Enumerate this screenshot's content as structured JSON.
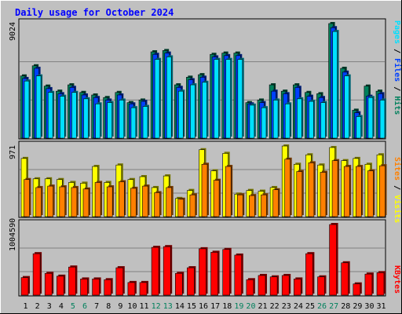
{
  "title": "Daily usage for October 2024",
  "colors": {
    "background": "#c0c0c0",
    "plot": "#c0c0c0",
    "title": "#0000ff",
    "hits": "#00805c",
    "files": "#0040ff",
    "pages": "#00e0ff",
    "visits": "#ffff00",
    "sites": "#ff8000",
    "kbytes": "#ff0000",
    "weekend_label": "#00805c",
    "weekday_label": "#000000",
    "grid": "#808080"
  },
  "panels": {
    "top": {
      "ymax_label": "9024",
      "legend": [
        {
          "text": "Pages",
          "color_key": "pages"
        },
        {
          "text": " / ",
          "color_key": "weekday_label"
        },
        {
          "text": "Files",
          "color_key": "files"
        },
        {
          "text": " / ",
          "color_key": "weekday_label"
        },
        {
          "text": "Hits",
          "color_key": "hits"
        }
      ]
    },
    "middle": {
      "ymax_label": "971",
      "legend": [
        {
          "text": "Sites",
          "color_key": "sites"
        },
        {
          "text": " / ",
          "color_key": "weekday_label"
        },
        {
          "text": "Visits",
          "color_key": "visits"
        }
      ]
    },
    "bottom": {
      "ymax_label": "1004590",
      "legend": [
        {
          "text": "KBytes",
          "color_key": "kbytes"
        }
      ]
    }
  },
  "chart_data": {
    "type": "bar",
    "title": "Daily usage for October 2024",
    "days": [
      "1",
      "2",
      "3",
      "4",
      "5",
      "6",
      "7",
      "8",
      "9",
      "10",
      "11",
      "12",
      "13",
      "14",
      "15",
      "16",
      "17",
      "18",
      "19",
      "20",
      "21",
      "22",
      "23",
      "24",
      "25",
      "26",
      "27",
      "28",
      "29",
      "30",
      "31"
    ],
    "weekend_days": [
      "5",
      "6",
      "12",
      "13",
      "19",
      "20",
      "26",
      "27"
    ],
    "hits": [
      4900,
      5700,
      4100,
      3700,
      4200,
      3600,
      3400,
      3200,
      3600,
      2800,
      3000,
      6800,
      6900,
      4200,
      4800,
      5000,
      6600,
      6700,
      6700,
      2800,
      3000,
      4200,
      3700,
      4200,
      3600,
      3500,
      9024,
      5500,
      2200,
      4100,
      3700
    ],
    "files": [
      4700,
      5500,
      3900,
      3500,
      4000,
      3400,
      3200,
      3000,
      3400,
      2700,
      2900,
      6600,
      6700,
      4000,
      4600,
      4800,
      6400,
      6500,
      6500,
      2700,
      2800,
      3700,
      3500,
      4000,
      3300,
      3200,
      8700,
      5200,
      2000,
      3300,
      3500
    ],
    "pages": [
      4500,
      4900,
      3600,
      3300,
      3600,
      3100,
      2700,
      2800,
      3000,
      2400,
      2500,
      6200,
      6400,
      3700,
      4200,
      4400,
      6200,
      6200,
      6200,
      2600,
      2400,
      3000,
      2700,
      3100,
      2900,
      2800,
      8400,
      4900,
      1700,
      3200,
      3000
    ],
    "visits": [
      800,
      520,
      520,
      510,
      470,
      460,
      690,
      470,
      710,
      510,
      550,
      400,
      560,
      250,
      360,
      920,
      630,
      870,
      310,
      360,
      350,
      400,
      971,
      720,
      850,
      710,
      950,
      770,
      800,
      720,
      850
    ],
    "sites": [
      510,
      400,
      420,
      410,
      400,
      380,
      470,
      410,
      480,
      390,
      420,
      330,
      400,
      240,
      300,
      720,
      500,
      690,
      300,
      290,
      300,
      370,
      790,
      620,
      740,
      610,
      770,
      690,
      690,
      630,
      700
    ],
    "kbytes": [
      250000,
      590000,
      310000,
      270000,
      400000,
      230000,
      230000,
      220000,
      390000,
      180000,
      180000,
      680000,
      690000,
      310000,
      390000,
      660000,
      610000,
      650000,
      570000,
      220000,
      280000,
      260000,
      280000,
      230000,
      590000,
      260000,
      1004590,
      460000,
      160000,
      300000,
      320000
    ]
  }
}
